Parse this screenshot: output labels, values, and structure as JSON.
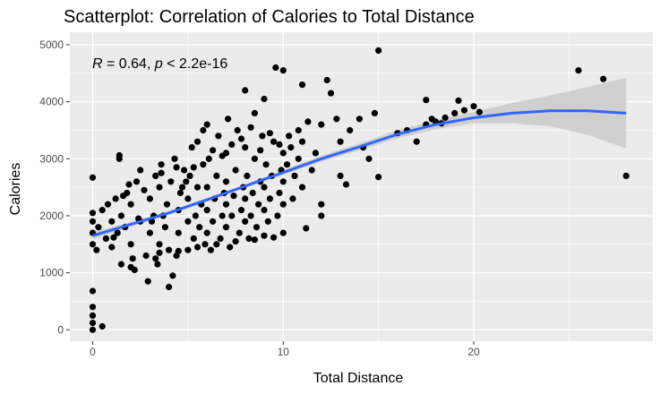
{
  "chart_data": {
    "type": "scatter",
    "title": "Scatterplot: Correlation of Calories to Total Distance",
    "xlabel": "Total Distance",
    "ylabel": "Calories",
    "xlim": [
      -1.2,
      29.4
    ],
    "ylim": [
      -200,
      5220
    ],
    "x_ticks": [
      0,
      10,
      20
    ],
    "y_ticks": [
      0,
      1000,
      2000,
      3000,
      4000,
      5000
    ],
    "x_tick_labels": [
      "0",
      "10",
      "20"
    ],
    "y_tick_labels": [
      "0",
      "1000",
      "2000",
      "3000",
      "4000",
      "5000"
    ],
    "grid": true,
    "background": "#ebebeb",
    "point_color": "#000000",
    "smooth_color": "#3366ff",
    "ribbon_color": "#c8c8c8",
    "annotation": {
      "r_symbol": "R",
      "r_value": " = 0.64, ",
      "p_symbol": "p",
      "p_value": " < 2.2e-16"
    },
    "smooth": {
      "x": [
        0,
        2,
        4,
        6,
        8,
        10,
        12,
        14,
        16,
        18,
        20,
        22,
        24,
        26,
        28
      ],
      "y": [
        1650,
        1850,
        2050,
        2280,
        2520,
        2760,
        3000,
        3210,
        3430,
        3600,
        3720,
        3800,
        3840,
        3840,
        3800
      ],
      "lower": [
        1590,
        1810,
        2020,
        2250,
        2490,
        2720,
        2950,
        3150,
        3360,
        3520,
        3620,
        3620,
        3570,
        3420,
        3180
      ],
      "upper": [
        1710,
        1890,
        2080,
        2310,
        2550,
        2800,
        3050,
        3270,
        3500,
        3680,
        3820,
        3980,
        4110,
        4260,
        4420
      ]
    },
    "points": [
      [
        0,
        0
      ],
      [
        0,
        120
      ],
      [
        0,
        250
      ],
      [
        0,
        400
      ],
      [
        0,
        680
      ],
      [
        0,
        2670
      ],
      [
        0.5,
        60
      ],
      [
        0,
        1500
      ],
      [
        0,
        1700
      ],
      [
        0,
        1900
      ],
      [
        0,
        2050
      ],
      [
        0.2,
        1400
      ],
      [
        0.3,
        1800
      ],
      [
        0.5,
        2100
      ],
      [
        0.7,
        1600
      ],
      [
        0.8,
        2200
      ],
      [
        1,
        1450
      ],
      [
        1,
        1900
      ],
      [
        1.2,
        2300
      ],
      [
        1.3,
        1700
      ],
      [
        1.5,
        1150
      ],
      [
        1.5,
        2000
      ],
      [
        1.8,
        2400
      ],
      [
        1.4,
        3000
      ],
      [
        1.4,
        3060
      ],
      [
        1.7,
        1800
      ],
      [
        2,
        1500
      ],
      [
        2,
        2200
      ],
      [
        2.2,
        1050
      ],
      [
        2.3,
        2600
      ],
      [
        2.5,
        1900
      ],
      [
        2.5,
        2800
      ],
      [
        2.8,
        1300
      ],
      [
        2.9,
        850
      ],
      [
        2,
        1100
      ],
      [
        2.1,
        1250
      ],
      [
        1.9,
        2550
      ],
      [
        3,
        1700
      ],
      [
        3,
        2300
      ],
      [
        3.2,
        2000
      ],
      [
        3.3,
        2700
      ],
      [
        3.4,
        1150
      ],
      [
        3.5,
        1500
      ],
      [
        3.5,
        2500
      ],
      [
        3.6,
        2900
      ],
      [
        3.8,
        1800
      ],
      [
        3.9,
        2200
      ],
      [
        4,
        750
      ],
      [
        4.2,
        950
      ],
      [
        4,
        1400
      ],
      [
        4.1,
        2600
      ],
      [
        4.3,
        3000
      ],
      [
        4.4,
        1300
      ],
      [
        4.5,
        1700
      ],
      [
        4.5,
        2100
      ],
      [
        4.6,
        2400
      ],
      [
        4.8,
        2800
      ],
      [
        3.1,
        1900
      ],
      [
        3.7,
        2000
      ],
      [
        4.7,
        2500
      ],
      [
        5,
        1400
      ],
      [
        5,
        1900
      ],
      [
        5,
        2300
      ],
      [
        5.1,
        2700
      ],
      [
        5.2,
        3200
      ],
      [
        5.3,
        1600
      ],
      [
        5.4,
        2000
      ],
      [
        5.5,
        2500
      ],
      [
        5.5,
        3300
      ],
      [
        5.6,
        1800
      ],
      [
        5.7,
        2200
      ],
      [
        5.8,
        2900
      ],
      [
        5.9,
        1500
      ],
      [
        6,
        1700
      ],
      [
        6,
        2100
      ],
      [
        6,
        2500
      ],
      [
        6,
        3600
      ],
      [
        6.1,
        3000
      ],
      [
        6.2,
        1400
      ],
      [
        6.3,
        1900
      ],
      [
        6.4,
        2300
      ],
      [
        6.5,
        2700
      ],
      [
        6.6,
        3400
      ],
      [
        6.7,
        1600
      ],
      [
        6.8,
        2000
      ],
      [
        6.9,
        2400
      ],
      [
        7,
        1800
      ],
      [
        7,
        2200
      ],
      [
        7,
        2600
      ],
      [
        7,
        3100
      ],
      [
        7.1,
        3700
      ],
      [
        7.2,
        1450
      ],
      [
        7.3,
        2000
      ],
      [
        7.4,
        2350
      ],
      [
        7.5,
        2800
      ],
      [
        7.6,
        3500
      ],
      [
        7.7,
        1700
      ],
      [
        7.8,
        2100
      ],
      [
        7.9,
        2500
      ],
      [
        8,
        1900
      ],
      [
        8,
        2300
      ],
      [
        8,
        3200
      ],
      [
        8,
        4200
      ],
      [
        8.1,
        2700
      ],
      [
        8.2,
        1600
      ],
      [
        8.3,
        2000
      ],
      [
        8.4,
        2400
      ],
      [
        8.5,
        3000
      ],
      [
        8.5,
        3800
      ],
      [
        8.6,
        1800
      ],
      [
        8.7,
        2200
      ],
      [
        8.8,
        2600
      ],
      [
        8.9,
        3400
      ],
      [
        9,
        1650
      ],
      [
        9,
        2100
      ],
      [
        9,
        2500
      ],
      [
        9,
        4050
      ],
      [
        9.1,
        2900
      ],
      [
        9.2,
        1900
      ],
      [
        9.3,
        2300
      ],
      [
        9.4,
        2700
      ],
      [
        9.5,
        3300
      ],
      [
        9.6,
        4600
      ],
      [
        9.7,
        2000
      ],
      [
        9.8,
        2400
      ],
      [
        9.9,
        2800
      ],
      [
        10,
        1700
      ],
      [
        10,
        2200
      ],
      [
        10,
        2600
      ],
      [
        10,
        3100
      ],
      [
        10,
        4550
      ],
      [
        10.2,
        2900
      ],
      [
        10.4,
        3200
      ],
      [
        10.5,
        2300
      ],
      [
        10.6,
        2700
      ],
      [
        10.8,
        3000
      ],
      [
        11,
        2500
      ],
      [
        11,
        3300
      ],
      [
        11,
        4300
      ],
      [
        11.2,
        1780
      ],
      [
        11.5,
        2800
      ],
      [
        11.7,
        3100
      ],
      [
        12,
        3600
      ],
      [
        12,
        2000
      ],
      [
        12.3,
        4380
      ],
      [
        12.5,
        4150
      ],
      [
        12.8,
        3700
      ],
      [
        13,
        3300
      ],
      [
        13.5,
        3500
      ],
      [
        14,
        3700
      ],
      [
        14.2,
        3200
      ],
      [
        14.5,
        3000
      ],
      [
        15,
        2680
      ],
      [
        13,
        2700
      ],
      [
        13.3,
        2550
      ],
      [
        12,
        2200
      ],
      [
        14.8,
        3800
      ],
      [
        15,
        4900
      ],
      [
        16,
        3450
      ],
      [
        16.5,
        3500
      ],
      [
        17,
        3300
      ],
      [
        17.5,
        3600
      ],
      [
        17.8,
        3700
      ],
      [
        18,
        3650
      ],
      [
        18.3,
        3620
      ],
      [
        18.5,
        3720
      ],
      [
        19,
        3800
      ],
      [
        19.2,
        4020
      ],
      [
        19.5,
        3850
      ],
      [
        20,
        3920
      ],
      [
        20.3,
        3820
      ],
      [
        17.5,
        4030
      ],
      [
        25.5,
        4550
      ],
      [
        26.8,
        4400
      ],
      [
        28,
        2700
      ],
      [
        1.1,
        1620
      ],
      [
        1.6,
        2350
      ],
      [
        2.4,
        1950
      ],
      [
        2.7,
        2450
      ],
      [
        3.3,
        1250
      ],
      [
        3.6,
        2750
      ],
      [
        4.4,
        2850
      ],
      [
        4.9,
        2600
      ],
      [
        5.3,
        2850
      ],
      [
        5.8,
        3500
      ],
      [
        6.3,
        3150
      ],
      [
        6.8,
        3050
      ],
      [
        7.3,
        3250
      ],
      [
        7.8,
        3350
      ],
      [
        8.3,
        3550
      ],
      [
        8.8,
        3150
      ],
      [
        9.3,
        3450
      ],
      [
        9.8,
        3250
      ],
      [
        10.3,
        3400
      ],
      [
        10.8,
        3500
      ],
      [
        11.3,
        3650
      ],
      [
        6.5,
        1500
      ],
      [
        7.5,
        1550
      ],
      [
        8.5,
        1580
      ],
      [
        9.5,
        1620
      ],
      [
        5.5,
        1450
      ],
      [
        4.5,
        1380
      ],
      [
        3.5,
        1350
      ]
    ]
  }
}
